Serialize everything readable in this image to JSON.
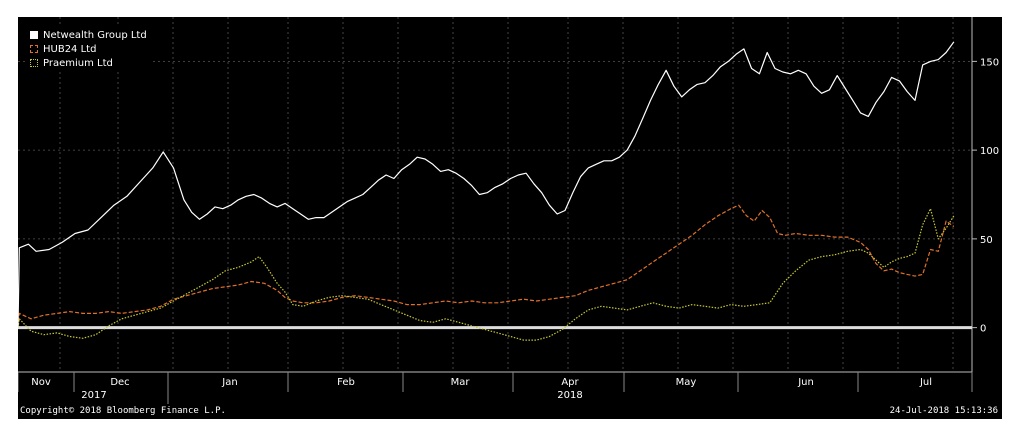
{
  "chart_data": {
    "type": "line",
    "title": "",
    "xlabel": "",
    "ylabel": "",
    "ylim": [
      -25,
      175
    ],
    "yticks": [
      0,
      50,
      100,
      150
    ],
    "month_labels": [
      "Nov",
      "Dec",
      "Jan",
      "Feb",
      "Mar",
      "Apr",
      "May",
      "Jun",
      "Jul"
    ],
    "year_labels": [
      "2017",
      "2018"
    ],
    "legend_position": "top-left",
    "grid": true,
    "zero_line": true,
    "series": [
      {
        "name": "Netwealth Group Ltd",
        "color": "#ffffff",
        "style": "solid",
        "points": [
          [
            0,
            0
          ],
          [
            0.5,
            45
          ],
          [
            4,
            47
          ],
          [
            7,
            43
          ],
          [
            12,
            44
          ],
          [
            17,
            48
          ],
          [
            22,
            53
          ],
          [
            27,
            55
          ],
          [
            32,
            62
          ],
          [
            37,
            69
          ],
          [
            42,
            74
          ],
          [
            47,
            82
          ],
          [
            52,
            90
          ],
          [
            56,
            99
          ],
          [
            60,
            90
          ],
          [
            64,
            72
          ],
          [
            67,
            65
          ],
          [
            70,
            61
          ],
          [
            73,
            64
          ],
          [
            76,
            68
          ],
          [
            79,
            67
          ],
          [
            82,
            69
          ],
          [
            85,
            72
          ],
          [
            88,
            74
          ],
          [
            91,
            75
          ],
          [
            94,
            73
          ],
          [
            97,
            70
          ],
          [
            100,
            68
          ],
          [
            103,
            70
          ],
          [
            106,
            67
          ],
          [
            109,
            64
          ],
          [
            112,
            61
          ],
          [
            115,
            62
          ],
          [
            118,
            62
          ],
          [
            121,
            65
          ],
          [
            124,
            68
          ],
          [
            127,
            71
          ],
          [
            130,
            73
          ],
          [
            133,
            75
          ],
          [
            136,
            79
          ],
          [
            139,
            83
          ],
          [
            142,
            86
          ],
          [
            145,
            84
          ],
          [
            148,
            89
          ],
          [
            151,
            92
          ],
          [
            154,
            96
          ],
          [
            157,
            95
          ],
          [
            160,
            92
          ],
          [
            163,
            88
          ],
          [
            166,
            89
          ],
          [
            169,
            87
          ],
          [
            172,
            84
          ],
          [
            175,
            80
          ],
          [
            178,
            75
          ],
          [
            181,
            76
          ],
          [
            184,
            79
          ],
          [
            187,
            81
          ],
          [
            190,
            84
          ],
          [
            193,
            86
          ],
          [
            196,
            87
          ],
          [
            199,
            81
          ],
          [
            202,
            76
          ],
          [
            205,
            69
          ],
          [
            208,
            64
          ],
          [
            211,
            66
          ],
          [
            214,
            76
          ],
          [
            217,
            85
          ],
          [
            220,
            90
          ],
          [
            223,
            92
          ],
          [
            226,
            94
          ],
          [
            229,
            94
          ],
          [
            232,
            96
          ],
          [
            235,
            100
          ],
          [
            238,
            108
          ],
          [
            241,
            118
          ],
          [
            244,
            128
          ],
          [
            247,
            137
          ],
          [
            250,
            145
          ],
          [
            253,
            136
          ],
          [
            256,
            130
          ],
          [
            259,
            134
          ],
          [
            262,
            137
          ],
          [
            265,
            138
          ],
          [
            268,
            142
          ],
          [
            271,
            147
          ],
          [
            274,
            150
          ],
          [
            277,
            154
          ],
          [
            280,
            157
          ],
          [
            283,
            146
          ],
          [
            286,
            143
          ],
          [
            289,
            155
          ],
          [
            292,
            146
          ],
          [
            295,
            144
          ],
          [
            298,
            143
          ],
          [
            301,
            145
          ],
          [
            304,
            143
          ],
          [
            307,
            136
          ],
          [
            310,
            132
          ],
          [
            313,
            134
          ],
          [
            316,
            142
          ],
          [
            319,
            135
          ],
          [
            322,
            128
          ],
          [
            325,
            121
          ],
          [
            328,
            119
          ],
          [
            331,
            127
          ],
          [
            334,
            133
          ],
          [
            337,
            141
          ],
          [
            340,
            139
          ],
          [
            343,
            133
          ],
          [
            346,
            128
          ],
          [
            349,
            148
          ],
          [
            352,
            150
          ],
          [
            355,
            151
          ],
          [
            358,
            155
          ],
          [
            361,
            161
          ]
        ]
      },
      {
        "name": "HUB24 Ltd",
        "color": "#e0702a",
        "style": "dashed",
        "points": [
          [
            0,
            0
          ],
          [
            0.5,
            8
          ],
          [
            5,
            5
          ],
          [
            10,
            7
          ],
          [
            15,
            8
          ],
          [
            20,
            9
          ],
          [
            25,
            8
          ],
          [
            30,
            8
          ],
          [
            35,
            9
          ],
          [
            40,
            8
          ],
          [
            45,
            9
          ],
          [
            50,
            10
          ],
          [
            55,
            12
          ],
          [
            60,
            16
          ],
          [
            65,
            18
          ],
          [
            70,
            20
          ],
          [
            75,
            22
          ],
          [
            80,
            23
          ],
          [
            85,
            24
          ],
          [
            90,
            26
          ],
          [
            95,
            25
          ],
          [
            100,
            21
          ],
          [
            103,
            17
          ],
          [
            106,
            15
          ],
          [
            110,
            14
          ],
          [
            115,
            14
          ],
          [
            120,
            15
          ],
          [
            125,
            17
          ],
          [
            130,
            18
          ],
          [
            135,
            17
          ],
          [
            140,
            16
          ],
          [
            145,
            15
          ],
          [
            150,
            13
          ],
          [
            155,
            13
          ],
          [
            160,
            14
          ],
          [
            165,
            15
          ],
          [
            170,
            14
          ],
          [
            175,
            15
          ],
          [
            180,
            14
          ],
          [
            185,
            14
          ],
          [
            190,
            15
          ],
          [
            195,
            16
          ],
          [
            200,
            15
          ],
          [
            205,
            16
          ],
          [
            210,
            17
          ],
          [
            215,
            18
          ],
          [
            220,
            21
          ],
          [
            225,
            23
          ],
          [
            230,
            25
          ],
          [
            235,
            27
          ],
          [
            240,
            32
          ],
          [
            245,
            37
          ],
          [
            250,
            42
          ],
          [
            255,
            47
          ],
          [
            260,
            52
          ],
          [
            265,
            58
          ],
          [
            270,
            63
          ],
          [
            275,
            67
          ],
          [
            278,
            69
          ],
          [
            281,
            63
          ],
          [
            284,
            60
          ],
          [
            287,
            66
          ],
          [
            290,
            62
          ],
          [
            293,
            53
          ],
          [
            296,
            52
          ],
          [
            300,
            53
          ],
          [
            305,
            52
          ],
          [
            310,
            52
          ],
          [
            315,
            51
          ],
          [
            320,
            51
          ],
          [
            325,
            48
          ],
          [
            328,
            44
          ],
          [
            331,
            36
          ],
          [
            334,
            32
          ],
          [
            337,
            33
          ],
          [
            340,
            31
          ],
          [
            343,
            30
          ],
          [
            346,
            29
          ],
          [
            349,
            30
          ],
          [
            352,
            44
          ],
          [
            355,
            43
          ],
          [
            358,
            60
          ],
          [
            361,
            57
          ]
        ]
      },
      {
        "name": "Praemium Ltd",
        "color": "#c8c832",
        "style": "dotted",
        "points": [
          [
            0,
            0
          ],
          [
            0.5,
            5
          ],
          [
            5,
            -2
          ],
          [
            10,
            -4
          ],
          [
            15,
            -3
          ],
          [
            20,
            -5
          ],
          [
            25,
            -6
          ],
          [
            30,
            -4
          ],
          [
            35,
            1
          ],
          [
            40,
            5
          ],
          [
            45,
            7
          ],
          [
            50,
            9
          ],
          [
            55,
            11
          ],
          [
            60,
            15
          ],
          [
            65,
            19
          ],
          [
            70,
            23
          ],
          [
            75,
            27
          ],
          [
            80,
            32
          ],
          [
            85,
            34
          ],
          [
            90,
            37
          ],
          [
            93,
            40
          ],
          [
            96,
            34
          ],
          [
            100,
            25
          ],
          [
            103,
            20
          ],
          [
            106,
            13
          ],
          [
            110,
            12
          ],
          [
            115,
            15
          ],
          [
            120,
            17
          ],
          [
            125,
            18
          ],
          [
            130,
            17
          ],
          [
            135,
            16
          ],
          [
            140,
            13
          ],
          [
            145,
            10
          ],
          [
            150,
            7
          ],
          [
            155,
            4
          ],
          [
            160,
            3
          ],
          [
            165,
            5
          ],
          [
            170,
            3
          ],
          [
            175,
            1
          ],
          [
            180,
            -1
          ],
          [
            185,
            -3
          ],
          [
            190,
            -5
          ],
          [
            195,
            -7
          ],
          [
            200,
            -7
          ],
          [
            205,
            -5
          ],
          [
            210,
            -1
          ],
          [
            215,
            5
          ],
          [
            220,
            10
          ],
          [
            225,
            12
          ],
          [
            230,
            11
          ],
          [
            235,
            10
          ],
          [
            240,
            12
          ],
          [
            245,
            14
          ],
          [
            250,
            12
          ],
          [
            255,
            11
          ],
          [
            260,
            13
          ],
          [
            265,
            12
          ],
          [
            270,
            11
          ],
          [
            275,
            13
          ],
          [
            280,
            12
          ],
          [
            285,
            13
          ],
          [
            290,
            14
          ],
          [
            295,
            25
          ],
          [
            300,
            32
          ],
          [
            305,
            38
          ],
          [
            310,
            40
          ],
          [
            315,
            41
          ],
          [
            320,
            43
          ],
          [
            325,
            44
          ],
          [
            328,
            42
          ],
          [
            331,
            38
          ],
          [
            334,
            34
          ],
          [
            337,
            37
          ],
          [
            340,
            39
          ],
          [
            343,
            40
          ],
          [
            346,
            42
          ],
          [
            349,
            58
          ],
          [
            352,
            67
          ],
          [
            355,
            50
          ],
          [
            358,
            56
          ],
          [
            361,
            63
          ]
        ]
      }
    ]
  },
  "footer": {
    "copyright": "Copyright© 2018 Bloomberg Finance L.P.",
    "timestamp": "24-Jul-2018 15:13:36"
  }
}
